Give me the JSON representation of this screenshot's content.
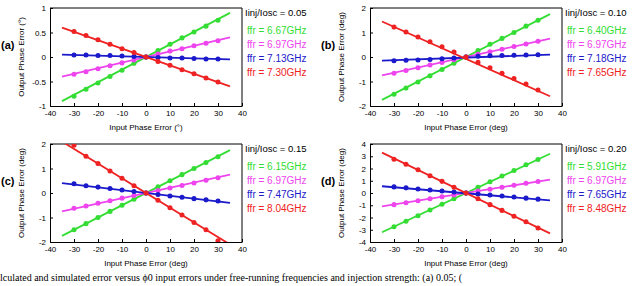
{
  "chart_data": [
    {
      "type": "scatter",
      "label": "(a)",
      "annotation": "Iinj/Iosc = 0.05",
      "x_label": "Input Phase Error (°)",
      "y_label": "Output Phase Error (°)",
      "marker": "circle",
      "line_style": "solid",
      "xlim": [
        -40,
        40
      ],
      "xticks": [
        -40,
        -30,
        -20,
        -10,
        0,
        10,
        20,
        30,
        40
      ],
      "ylim": [
        -1,
        1
      ],
      "yticks": [
        -1,
        -0.5,
        0,
        0.5,
        1
      ],
      "x": [
        -30,
        -25,
        -20,
        -15,
        -10,
        -5,
        0,
        5,
        10,
        15,
        20,
        25,
        30
      ],
      "series": [
        {
          "name": "ffr = 6.67GHz",
          "color": "#33dd33",
          "values": [
            -0.8,
            -0.66,
            -0.53,
            -0.4,
            -0.27,
            -0.13,
            0,
            0.13,
            0.26,
            0.39,
            0.51,
            0.63,
            0.75
          ],
          "calculated": {
            "x": [
              -35,
              35
            ],
            "values": [
              -0.9,
              0.9
            ]
          }
        },
        {
          "name": "ffr = 6.97GHz",
          "color": "#ee44ee",
          "values": [
            -0.35,
            -0.3,
            -0.24,
            -0.18,
            -0.12,
            -0.06,
            0,
            0.06,
            0.12,
            0.17,
            0.23,
            0.28,
            0.33
          ],
          "calculated": {
            "x": [
              -35,
              35
            ],
            "values": [
              -0.4,
              0.4
            ]
          }
        },
        {
          "name": "ffr = 7.13GHz",
          "color": "#1a1acc",
          "values": [
            0.04,
            0.04,
            0.03,
            0.03,
            0.02,
            0.01,
            0,
            -0.01,
            -0.02,
            -0.02,
            -0.03,
            -0.04,
            -0.04
          ],
          "calculated": {
            "x": [
              -35,
              35
            ],
            "values": [
              0.05,
              -0.05
            ]
          }
        },
        {
          "name": "ffr = 7.30GHz",
          "color": "#ee2222",
          "values": [
            0.52,
            0.44,
            0.35,
            0.26,
            0.17,
            0.09,
            0,
            -0.09,
            -0.17,
            -0.26,
            -0.34,
            -0.43,
            -0.51
          ],
          "calculated": {
            "x": [
              -35,
              35
            ],
            "values": [
              0.6,
              -0.6
            ]
          }
        }
      ]
    },
    {
      "type": "scatter",
      "label": "(b)",
      "annotation": "Iinj/Iosc = 0.10",
      "x_label": "Input Phase Error (deg)",
      "y_label": "Output Phase Error (deg)",
      "marker": "circle",
      "line_style": "solid",
      "xlim": [
        -40,
        40
      ],
      "xticks": [
        -40,
        -30,
        -20,
        -10,
        0,
        10,
        20,
        30,
        40
      ],
      "ylim": [
        -2,
        2
      ],
      "yticks": [
        -2,
        -1,
        0,
        1,
        2
      ],
      "x": [
        -30,
        -25,
        -20,
        -15,
        -10,
        -5,
        0,
        5,
        10,
        15,
        20,
        25,
        30
      ],
      "series": [
        {
          "name": "ffr = 6.40GHz",
          "color": "#33dd33",
          "values": [
            -1.52,
            -1.27,
            -1.02,
            -0.77,
            -0.51,
            -0.25,
            0,
            0.26,
            0.52,
            0.76,
            1.0,
            1.26,
            1.5
          ],
          "calculated": {
            "x": [
              -35,
              35
            ],
            "values": [
              -1.75,
              1.75
            ]
          }
        },
        {
          "name": "ffr = 6.97GHz",
          "color": "#ee44ee",
          "values": [
            -0.66,
            -0.55,
            -0.44,
            -0.33,
            -0.22,
            -0.11,
            0,
            0.11,
            0.21,
            0.32,
            0.43,
            0.53,
            0.64
          ],
          "calculated": {
            "x": [
              -35,
              35
            ],
            "values": [
              -0.75,
              0.75
            ]
          }
        },
        {
          "name": "ffr = 7.18GHz",
          "color": "#1a1acc",
          "values": [
            -0.15,
            -0.13,
            -0.12,
            -0.1,
            -0.07,
            -0.04,
            0,
            0.03,
            0.05,
            0.06,
            0.07,
            0.08,
            0.09
          ],
          "calculated": {
            "x": [
              -35,
              35
            ],
            "values": [
              -0.15,
              0.1
            ]
          }
        },
        {
          "name": "ffr = 7.65GHz",
          "color": "#ee2222",
          "values": [
            1.22,
            1.02,
            0.82,
            0.62,
            0.42,
            0.2,
            0,
            -0.22,
            -0.44,
            -0.66,
            -0.88,
            -1.1,
            -1.35
          ],
          "calculated": {
            "x": [
              -35,
              35
            ],
            "values": [
              1.45,
              -1.6
            ]
          }
        }
      ]
    },
    {
      "type": "scatter",
      "label": "(c)",
      "annotation": "Iinj/Iosc = 0.15",
      "x_label": "Input Phase Error (deg)",
      "y_label": "Output Phase Error (deg)",
      "marker": "circle",
      "line_style": "solid",
      "xlim": [
        -40,
        40
      ],
      "xticks": [
        -40,
        -30,
        -20,
        -10,
        0,
        10,
        20,
        30,
        40
      ],
      "ylim": [
        -2,
        2
      ],
      "yticks": [
        -2,
        -1,
        0,
        1,
        2
      ],
      "x": [
        -30,
        -25,
        -20,
        -15,
        -10,
        -5,
        0,
        5,
        10,
        15,
        20,
        25,
        30
      ],
      "series": [
        {
          "name": "ffr = 6.15GHz",
          "color": "#33dd33",
          "values": [
            -1.5,
            -1.25,
            -1.0,
            -0.75,
            -0.5,
            -0.25,
            0,
            0.25,
            0.5,
            0.75,
            1.0,
            1.24,
            1.48
          ],
          "calculated": {
            "x": [
              -35,
              35
            ],
            "values": [
              -1.75,
              1.75
            ]
          }
        },
        {
          "name": "ffr = 6.97GHz",
          "color": "#ee44ee",
          "values": [
            -0.62,
            -0.53,
            -0.42,
            -0.32,
            -0.21,
            -0.1,
            0,
            0.1,
            0.2,
            0.31,
            0.41,
            0.52,
            0.62
          ],
          "calculated": {
            "x": [
              -35,
              35
            ],
            "values": [
              -0.75,
              0.75
            ]
          }
        },
        {
          "name": "ffr = 7.47GHz",
          "color": "#1a1acc",
          "values": [
            0.38,
            0.3,
            0.24,
            0.18,
            0.12,
            0.06,
            0,
            -0.06,
            -0.12,
            -0.17,
            -0.23,
            -0.28,
            -0.33
          ],
          "calculated": {
            "x": [
              -35,
              35
            ],
            "values": [
              0.4,
              -0.4
            ]
          }
        },
        {
          "name": "ffr = 8.04GHz",
          "color": "#ee2222",
          "values": [
            1.95,
            1.5,
            1.2,
            0.9,
            0.6,
            0.3,
            0,
            -0.3,
            -0.6,
            -0.9,
            -1.2,
            -1.5,
            -1.95
          ],
          "calculated": {
            "x": [
              -35,
              35
            ],
            "values": [
              2.1,
              -2.1
            ]
          }
        }
      ]
    },
    {
      "type": "scatter",
      "label": "(d)",
      "annotation": "Iinj/Iosc = 0.20",
      "x_label": "Input Phase Error (deg)",
      "y_label": "Output Phase Error (deg)",
      "marker": "circle",
      "line_style": "solid",
      "xlim": [
        -40,
        40
      ],
      "xticks": [
        -40,
        -30,
        -20,
        -10,
        0,
        10,
        20,
        30,
        40
      ],
      "ylim": [
        -4,
        4
      ],
      "yticks": [
        -4,
        -3,
        -2,
        -1,
        0,
        1,
        2,
        3,
        4
      ],
      "x": [
        -30,
        -25,
        -20,
        -15,
        -10,
        -5,
        0,
        5,
        10,
        15,
        20,
        25,
        30
      ],
      "series": [
        {
          "name": "ffr = 5.91GHz",
          "color": "#33dd33",
          "values": [
            -2.75,
            -2.3,
            -1.85,
            -1.38,
            -0.92,
            -0.46,
            0,
            0.46,
            0.92,
            1.38,
            1.84,
            2.3,
            2.74
          ],
          "calculated": {
            "x": [
              -35,
              35
            ],
            "values": [
              -3.2,
              3.2
            ]
          }
        },
        {
          "name": "ffr = 6.97GHz",
          "color": "#ee44ee",
          "values": [
            -0.95,
            -0.8,
            -0.63,
            -0.47,
            -0.31,
            -0.16,
            0,
            0.16,
            0.31,
            0.47,
            0.63,
            0.79,
            0.94
          ],
          "calculated": {
            "x": [
              -35,
              35
            ],
            "values": [
              -1.1,
              1.1
            ]
          }
        },
        {
          "name": "ffr = 7.65GHz",
          "color": "#1a1acc",
          "values": [
            0.5,
            0.42,
            0.33,
            0.25,
            0.17,
            0.08,
            0,
            -0.08,
            -0.17,
            -0.25,
            -0.33,
            -0.42,
            -0.5
          ],
          "calculated": {
            "x": [
              -35,
              35
            ],
            "values": [
              0.55,
              -0.6
            ]
          }
        },
        {
          "name": "ffr = 8.48GHz",
          "color": "#ee2222",
          "values": [
            2.75,
            2.35,
            1.9,
            1.4,
            0.95,
            0.47,
            0,
            -0.47,
            -0.95,
            -1.42,
            -1.9,
            -2.35,
            -2.85
          ],
          "calculated": {
            "x": [
              -35,
              35
            ],
            "values": [
              3.3,
              -3.3
            ]
          }
        }
      ]
    }
  ],
  "caption": "lculated and simulated error versus ϕ0 input errors under free-running frequencies and injection strength: (a) 0.05; ("
}
